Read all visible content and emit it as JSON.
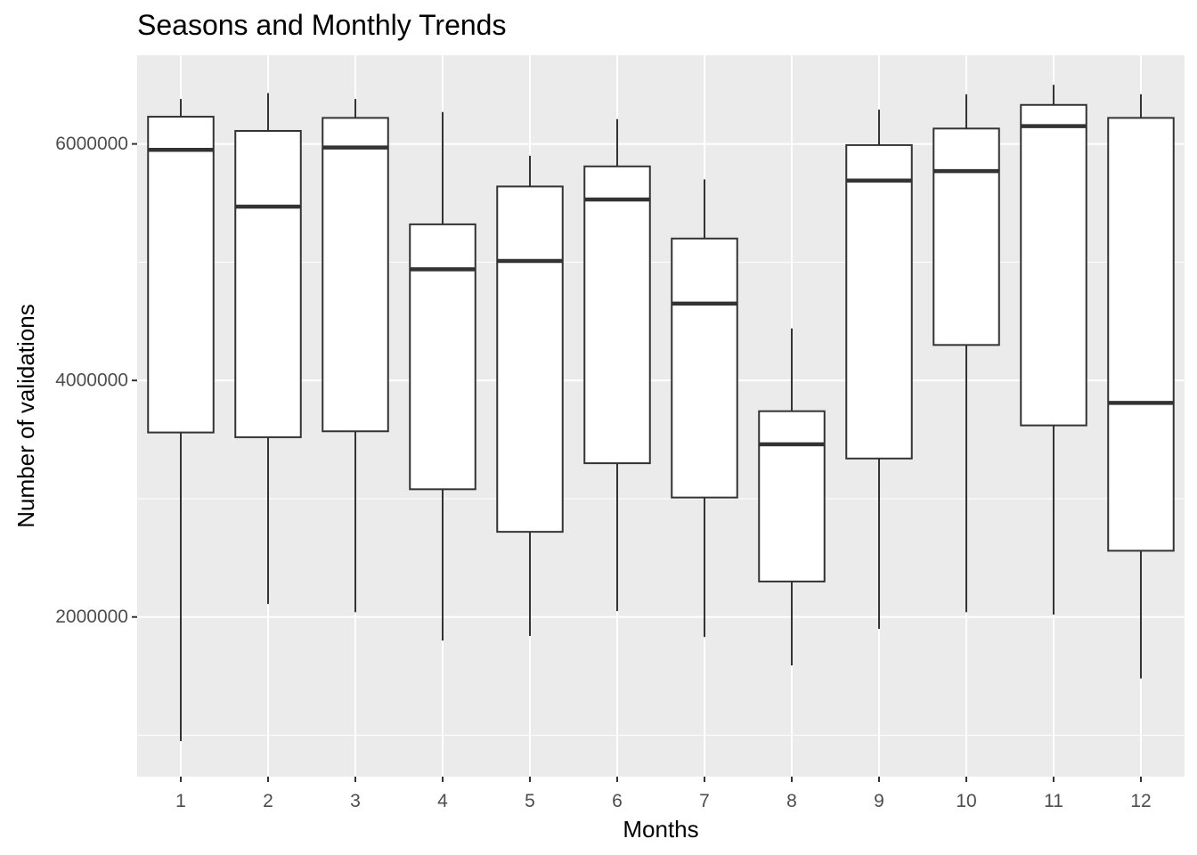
{
  "chart_data": {
    "type": "boxplot",
    "title": "Seasons and Monthly Trends",
    "xlabel": "Months",
    "ylabel": "Number of validations",
    "ylim": [
      650000,
      6750000
    ],
    "y_ticks": [
      2000000,
      4000000,
      6000000
    ],
    "y_tick_labels": [
      "2000000",
      "4000000",
      "6000000"
    ],
    "grid": true,
    "categories": [
      "1",
      "2",
      "3",
      "4",
      "5",
      "6",
      "7",
      "8",
      "9",
      "10",
      "11",
      "12"
    ],
    "boxes": [
      {
        "category": "1",
        "lower_whisker": 950000,
        "q1": 3560000,
        "median": 5950000,
        "q3": 6230000,
        "upper_whisker": 6380000
      },
      {
        "category": "2",
        "lower_whisker": 2110000,
        "q1": 3520000,
        "median": 5470000,
        "q3": 6110000,
        "upper_whisker": 6430000
      },
      {
        "category": "3",
        "lower_whisker": 2040000,
        "q1": 3570000,
        "median": 5970000,
        "q3": 6220000,
        "upper_whisker": 6380000
      },
      {
        "category": "4",
        "lower_whisker": 1800000,
        "q1": 3080000,
        "median": 4940000,
        "q3": 5320000,
        "upper_whisker": 6270000
      },
      {
        "category": "5",
        "lower_whisker": 1840000,
        "q1": 2720000,
        "median": 5010000,
        "q3": 5640000,
        "upper_whisker": 5900000
      },
      {
        "category": "6",
        "lower_whisker": 2050000,
        "q1": 3300000,
        "median": 5530000,
        "q3": 5810000,
        "upper_whisker": 6210000
      },
      {
        "category": "7",
        "lower_whisker": 1830000,
        "q1": 3010000,
        "median": 4650000,
        "q3": 5200000,
        "upper_whisker": 5700000
      },
      {
        "category": "8",
        "lower_whisker": 1590000,
        "q1": 2300000,
        "median": 3460000,
        "q3": 3740000,
        "upper_whisker": 4440000
      },
      {
        "category": "9",
        "lower_whisker": 1900000,
        "q1": 3340000,
        "median": 5690000,
        "q3": 5990000,
        "upper_whisker": 6290000
      },
      {
        "category": "10",
        "lower_whisker": 2040000,
        "q1": 4300000,
        "median": 5770000,
        "q3": 6130000,
        "upper_whisker": 6420000
      },
      {
        "category": "11",
        "lower_whisker": 2020000,
        "q1": 3620000,
        "median": 6150000,
        "q3": 6330000,
        "upper_whisker": 6500000
      },
      {
        "category": "12",
        "lower_whisker": 1480000,
        "q1": 2560000,
        "median": 3810000,
        "q3": 6220000,
        "upper_whisker": 6420000
      }
    ],
    "colors": {
      "panel_background": "#ebebeb",
      "grid_major": "#ffffff",
      "box_fill": "#ffffff",
      "box_stroke": "#333333",
      "tick_label": "#4d4d4d",
      "tick_mark": "#333333"
    }
  }
}
